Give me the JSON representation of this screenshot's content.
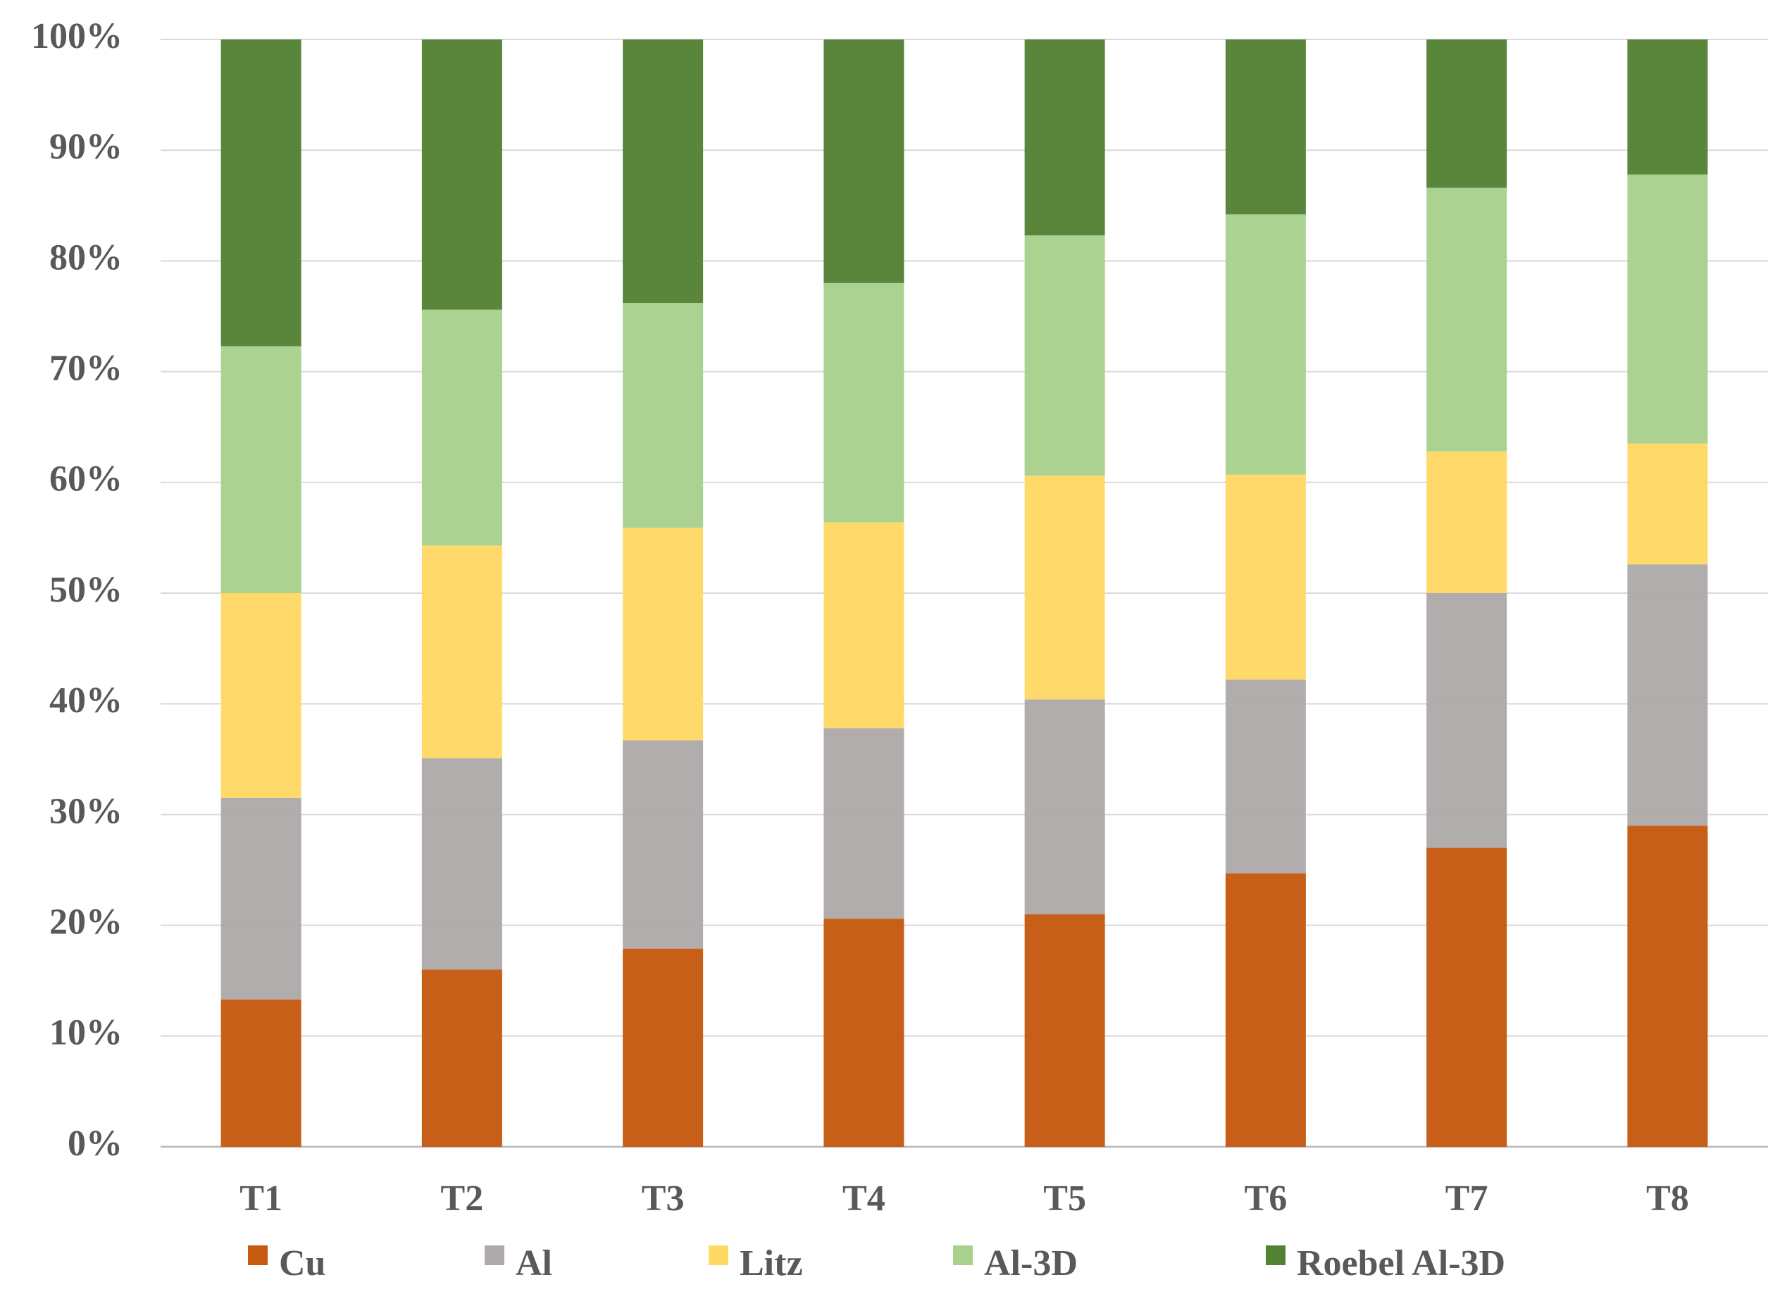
{
  "chart_data": {
    "type": "bar",
    "stacked": true,
    "percent": true,
    "categories": [
      "T1",
      "T2",
      "T3",
      "T4",
      "T5",
      "T6",
      "T7",
      "T8"
    ],
    "series": [
      {
        "name": "Cu",
        "color": "#C55A11",
        "values": [
          13.3,
          16.0,
          17.9,
          20.6,
          21.0,
          24.7,
          27.0,
          29.0
        ]
      },
      {
        "name": "Al",
        "color": "#AEAAAA",
        "values": [
          18.2,
          19.1,
          18.8,
          17.2,
          19.4,
          17.5,
          23.0,
          23.6
        ]
      },
      {
        "name": "Litz",
        "color": "#FFD966",
        "values": [
          18.5,
          19.2,
          19.2,
          18.6,
          20.2,
          18.5,
          12.8,
          10.9
        ]
      },
      {
        "name": "Al-3D",
        "color": "#A9D18E",
        "values": [
          22.3,
          21.3,
          20.3,
          21.6,
          21.7,
          23.5,
          23.8,
          24.3
        ]
      },
      {
        "name": "Roebel Al-3D",
        "color": "#548235",
        "values": [
          27.7,
          24.4,
          23.8,
          22.0,
          17.7,
          15.8,
          13.4,
          12.2
        ]
      }
    ],
    "y_ticks": [
      "0%",
      "10%",
      "20%",
      "30%",
      "40%",
      "50%",
      "60%",
      "70%",
      "80%",
      "90%",
      "100%"
    ],
    "ylim": [
      0,
      100
    ],
    "grid": true,
    "legend_position": "bottom",
    "title": "",
    "xlabel": "",
    "ylabel": ""
  }
}
